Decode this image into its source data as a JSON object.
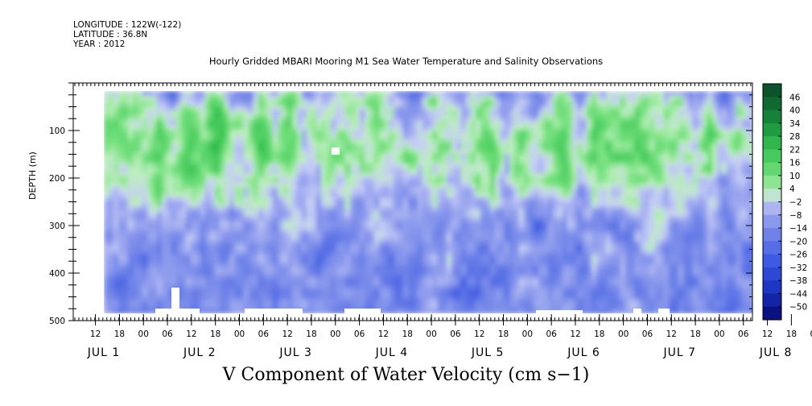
{
  "header": {
    "longitude": "LONGITUDE : 122W(-122)",
    "latitude": "LATITUDE : 36.8N",
    "year": "YEAR : 2012"
  },
  "chart_data": {
    "type": "heatmap",
    "title": "Hourly Gridded MBARI Mooring M1 Sea Water Temperature and Salinity Observations",
    "bottom_title": "V Component of Water Velocity (cm s−1)",
    "ylabel": "DEPTH (m)",
    "y_ticks": [
      "100",
      "200",
      "300",
      "400",
      "500"
    ],
    "ylim": [
      500,
      0
    ],
    "x_hour_ticks": [
      "12",
      "18",
      "00",
      "06",
      "12",
      "18",
      "00",
      "06",
      "12",
      "18",
      "00",
      "06",
      "12",
      "18",
      "00",
      "06",
      "12",
      "18",
      "00",
      "06",
      "12",
      "18",
      "00",
      "06",
      "12",
      "18",
      "00",
      "06",
      "12",
      "18",
      "00",
      "06"
    ],
    "x_day_labels": [
      "JUL  1",
      "JUL  2",
      "JUL  3",
      "JUL  4",
      "JUL  5",
      "JUL  6",
      "JUL  7",
      "JUL  8"
    ],
    "colorbar_labels": [
      "46",
      "40",
      "34",
      "28",
      "22",
      "16",
      "10",
      "4",
      "−2",
      "−8",
      "−14",
      "−20",
      "−26",
      "−32",
      "−38",
      "−44",
      "−50"
    ],
    "colorbar_range": [
      -50,
      50
    ],
    "depth_range_m": [
      20,
      490
    ],
    "colors": {
      "negative_strong": "#0a1a8a",
      "negative_mid": "#4a64d8",
      "near_zero_negative": "#a0aef0",
      "near_zero_positive": "#b8f0b8",
      "positive_mid": "#3ed25a",
      "positive_strong": "#0e5a2a"
    }
  }
}
